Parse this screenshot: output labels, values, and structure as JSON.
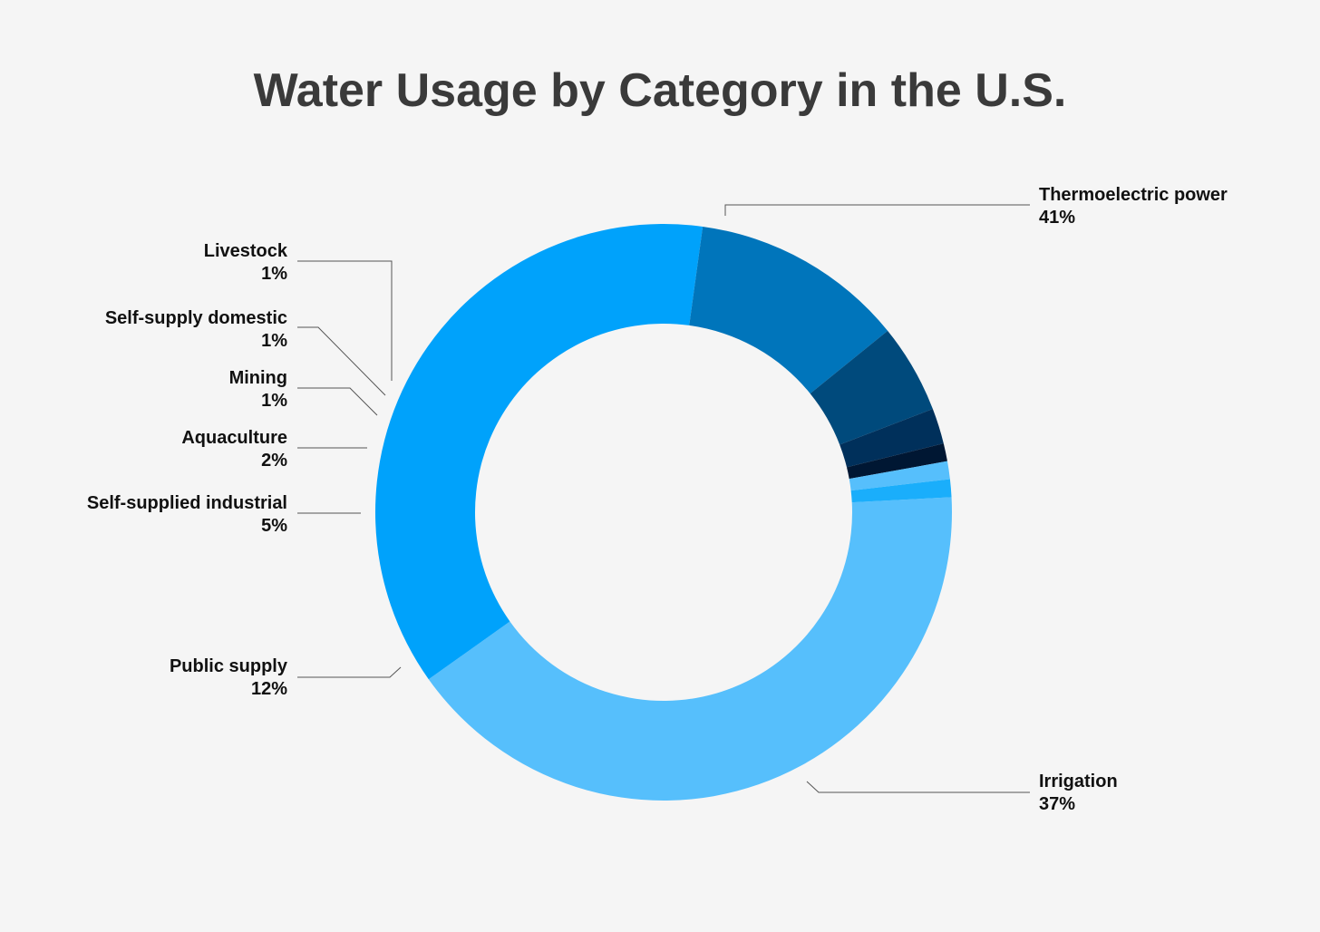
{
  "chart_data": {
    "type": "pie",
    "title": "Water Usage by Category in the U.S.",
    "donut": true,
    "slices": [
      {
        "name": "Thermoelectric power",
        "value": 41,
        "label": "41%",
        "color": "#56bffc"
      },
      {
        "name": "Irrigation",
        "value": 37,
        "label": "37%",
        "color": "#00a2fb"
      },
      {
        "name": "Public supply",
        "value": 12,
        "label": "12%",
        "color": "#0075bb"
      },
      {
        "name": "Self-supplied industrial",
        "value": 5,
        "label": "5%",
        "color": "#004a7c"
      },
      {
        "name": "Aquaculture",
        "value": 2,
        "label": "2%",
        "color": "#00305b"
      },
      {
        "name": "Mining",
        "value": 1,
        "label": "1%",
        "color": "#001733"
      },
      {
        "name": "Self-supply domestic",
        "value": 1,
        "label": "1%",
        "color": "#56bffc"
      },
      {
        "name": "Livestock",
        "value": 1,
        "label": "1%",
        "color": "#1aaefb"
      }
    ]
  }
}
